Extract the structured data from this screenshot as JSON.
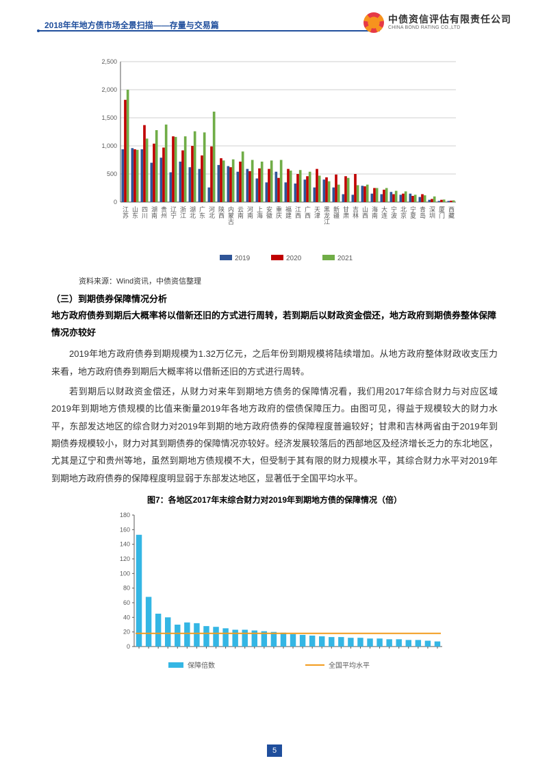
{
  "header": {
    "title": "2018年年地方债市场全景扫描——存量与交易篇",
    "logo_cn": "中债资信评估有限责任公司",
    "logo_en": "CHINA BOND RATING CO.,LTD"
  },
  "chart1": {
    "type": "bar",
    "ylim": [
      0,
      2500
    ],
    "ytick_step": 500,
    "yticks": [
      0,
      500,
      "1,000",
      "1,500",
      "2,000",
      "2,500"
    ],
    "categories": [
      "江苏",
      "山东",
      "四川",
      "湖南",
      "贵州",
      "辽宁",
      "浙江",
      "湖北",
      "广东",
      "河北",
      "陕西",
      "内蒙古",
      "云南",
      "河南",
      "上海",
      "安徽",
      "重庆",
      "福建",
      "江西",
      "广西",
      "天津",
      "黑龙江",
      "新疆",
      "甘肃",
      "吉林",
      "山西",
      "海南",
      "大连",
      "宁波",
      "北京",
      "宁夏",
      "青岛",
      "深圳",
      "厦门",
      "西藏"
    ],
    "series": [
      {
        "name": "2019",
        "color": "#2f5597",
        "values": [
          940,
          960,
          940,
          700,
          790,
          530,
          720,
          620,
          590,
          260,
          660,
          640,
          540,
          590,
          420,
          350,
          540,
          350,
          330,
          400,
          260,
          400,
          260,
          140,
          130,
          290,
          150,
          140,
          180,
          130,
          150,
          90,
          40,
          20,
          20
        ]
      },
      {
        "name": "2020",
        "color": "#c00000",
        "values": [
          1820,
          940,
          1370,
          1040,
          970,
          1170,
          920,
          1000,
          830,
          990,
          780,
          620,
          720,
          550,
          600,
          590,
          430,
          590,
          500,
          460,
          590,
          440,
          490,
          460,
          500,
          280,
          250,
          220,
          140,
          150,
          110,
          140,
          55,
          40,
          25
        ]
      },
      {
        "name": "2021",
        "color": "#70ad47",
        "values": [
          2000,
          930,
          1130,
          1280,
          1380,
          1160,
          1170,
          1260,
          1240,
          1610,
          740,
          760,
          900,
          750,
          720,
          740,
          750,
          560,
          570,
          540,
          470,
          370,
          310,
          430,
          300,
          310,
          250,
          250,
          200,
          190,
          130,
          120,
          100,
          45,
          30
        ]
      }
    ],
    "label_fontsize": 9,
    "tick_fontsize": 9,
    "background_color": "#ffffff",
    "grid_color": "#bfbfbf",
    "bar_group_gap": 3
  },
  "source": "资料来源：Wind资讯，中债资信整理",
  "section3_head": "（三）到期债券保障情况分析",
  "section3_bold": "地方政府债券到期后大概率将以借新还旧的方式进行周转，若到期后以财政资金偿还，地方政府到期债券整体保障情况亦较好",
  "para1": "2019年地方政府债券到期规模为1.32万亿元，之后年份到期规模将陆续增加。从地方政府整体财政收支压力来看，地方政府债券到期后大概率将以借新还旧的方式进行周转。",
  "para2": "若到期后以财政资金偿还，从财力对来年到期地方债务的保障情况看，我们用2017年综合财力与对应区域2019年到期地方债规模的比值来衡量2019年各地方政府的偿债保障压力。由图可见，得益于规模较大的财力水平，东部发达地区的综合财力对2019年到期的地方政府债券的保障程度普遍较好；甘肃和吉林两省由于2019年到期债券规模较小，财力对其到期债券的保障情况亦较好。经济发展较落后的西部地区及经济增长乏力的东北地区，尤其是辽宁和贵州等地，虽然到期地方债规模不大，但受制于其有限的财力规模水平，其综合财力水平对2019年到期地方政府债券的保障程度明显弱于东部发达地区，显著低于全国平均水平。",
  "fig7_title": "图7：各地区2017年末综合财力对2019年到期地方债的保障情况（倍）",
  "chart2": {
    "type": "bar_line",
    "ylim": [
      0,
      180
    ],
    "ytick_step": 20,
    "yticks": [
      0,
      20,
      40,
      60,
      80,
      100,
      120,
      140,
      160,
      180
    ],
    "n_bars": 32,
    "bar_color": "#34b6e4",
    "bar_values": [
      153,
      68,
      45,
      40,
      30,
      33,
      32,
      28,
      27,
      25,
      23,
      23,
      22,
      21,
      20,
      19,
      17,
      16,
      15,
      14,
      13,
      13,
      12,
      12,
      11,
      11,
      10,
      10,
      9,
      9,
      8,
      7
    ],
    "line_name": "全国平均水平",
    "line_color": "#f29b1d",
    "line_value": 18,
    "legend_bar": "保障倍数",
    "label_fontsize": 9,
    "background_color": "#ffffff",
    "grid_color": "#bfbfbf"
  },
  "page_number": "5"
}
